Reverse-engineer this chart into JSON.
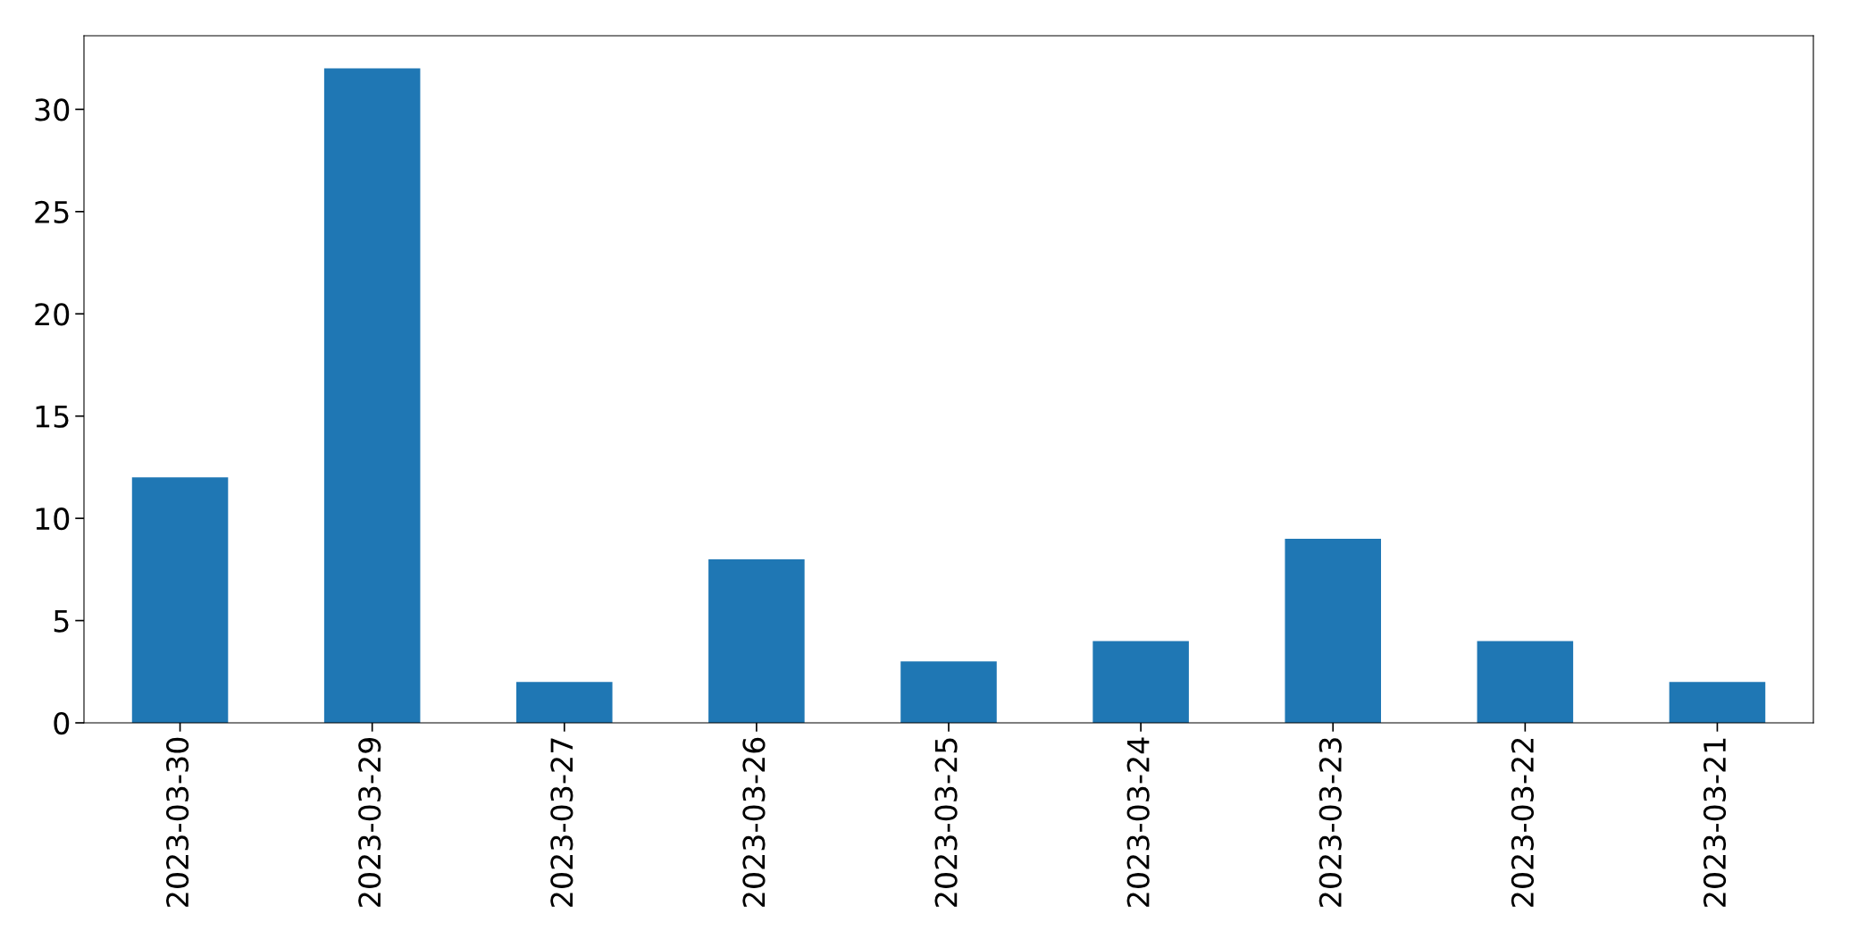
{
  "chart_data": {
    "type": "bar",
    "categories": [
      "2023-03-30",
      "2023-03-29",
      "2023-03-27",
      "2023-03-26",
      "2023-03-25",
      "2023-03-24",
      "2023-03-23",
      "2023-03-22",
      "2023-03-21"
    ],
    "values": [
      12,
      32,
      2,
      8,
      3,
      4,
      9,
      4,
      2
    ],
    "color": "#1f77b4",
    "ylim": [
      0,
      33.6
    ],
    "yticks": [
      0,
      5,
      10,
      15,
      20,
      25,
      30
    ],
    "grid": false
  }
}
